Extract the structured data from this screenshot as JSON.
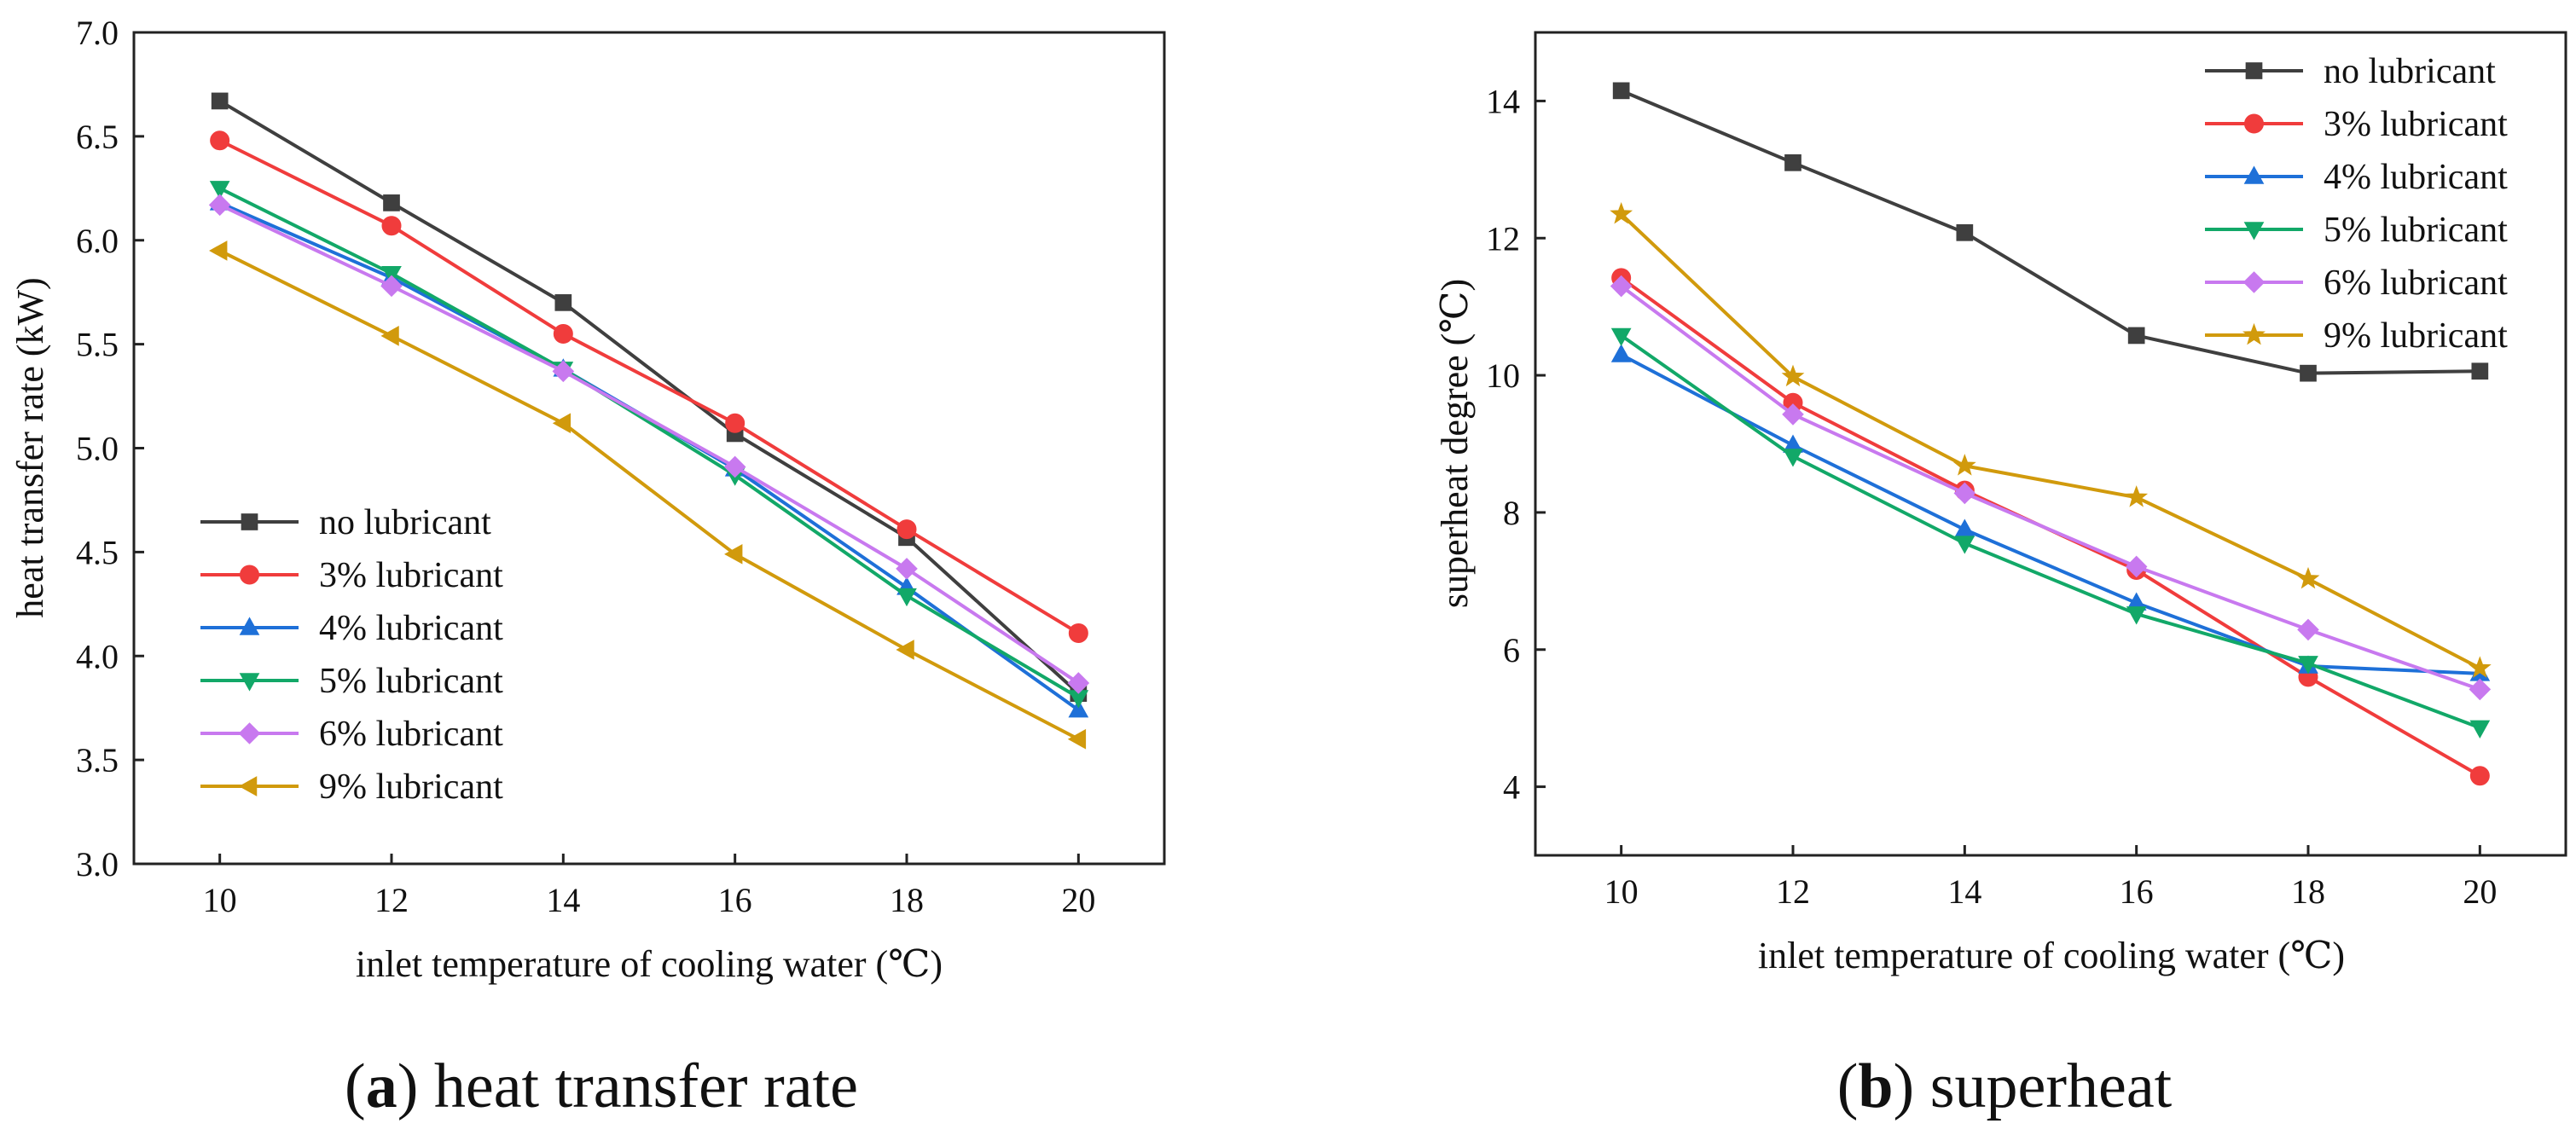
{
  "chart_data": [
    {
      "type": "line",
      "panel": "a",
      "caption_letter": "a",
      "caption_text": "heat transfer rate",
      "xlabel": "inlet temperature of cooling water (℃)",
      "ylabel": "heat transfer rate (kW)",
      "xlim": [
        9,
        21
      ],
      "ylim": [
        3.0,
        7.0
      ],
      "x": [
        10,
        12,
        14,
        16,
        18,
        20
      ],
      "xticks": [
        "10",
        "12",
        "14",
        "16",
        "18",
        "20"
      ],
      "yticks": [
        "3.0",
        "3.5",
        "4.0",
        "4.5",
        "5.0",
        "5.5",
        "6.0",
        "6.5",
        "7.0"
      ],
      "grid": false,
      "legend_position": "lower-left",
      "series": [
        {
          "name": "no lubricant",
          "color": "#3f3f3f",
          "marker": "square",
          "values": [
            6.67,
            6.18,
            5.7,
            5.07,
            4.57,
            3.82
          ]
        },
        {
          "name": "3% lubricant",
          "color": "#f03c3c",
          "marker": "circle",
          "values": [
            6.48,
            6.07,
            5.55,
            5.12,
            4.61,
            4.11
          ]
        },
        {
          "name": "4% lubricant",
          "color": "#1e70d8",
          "marker": "triangle-up",
          "values": [
            6.18,
            5.82,
            5.38,
            4.9,
            4.33,
            3.74
          ]
        },
        {
          "name": "5% lubricant",
          "color": "#12a868",
          "marker": "triangle-down",
          "values": [
            6.25,
            5.84,
            5.38,
            4.87,
            4.29,
            3.8
          ]
        },
        {
          "name": "6% lubricant",
          "color": "#c879ef",
          "marker": "diamond",
          "values": [
            6.17,
            5.78,
            5.37,
            4.91,
            4.42,
            3.87
          ]
        },
        {
          "name": "9% lubricant",
          "color": "#d19a0c",
          "marker": "triangle-left",
          "values": [
            5.95,
            5.54,
            5.12,
            4.49,
            4.03,
            3.6
          ]
        }
      ]
    },
    {
      "type": "line",
      "panel": "b",
      "caption_letter": "b",
      "caption_text": "superheat",
      "xlabel": "inlet temperature of cooling water (℃)",
      "ylabel": "superheat degree (℃)",
      "xlim": [
        9,
        21
      ],
      "ylim": [
        3,
        15
      ],
      "x": [
        10,
        12,
        14,
        16,
        18,
        20
      ],
      "xticks": [
        "10",
        "12",
        "14",
        "16",
        "18",
        "20"
      ],
      "yticks": [
        "4",
        "6",
        "8",
        "10",
        "12",
        "14"
      ],
      "grid": false,
      "legend_position": "top-right",
      "series": [
        {
          "name": "no lubricant",
          "color": "#3f3f3f",
          "marker": "square",
          "values": [
            14.15,
            13.1,
            12.08,
            10.58,
            10.03,
            10.06
          ]
        },
        {
          "name": "3% lubricant",
          "color": "#f03c3c",
          "marker": "circle",
          "values": [
            11.42,
            9.6,
            8.32,
            7.16,
            5.6,
            4.16
          ]
        },
        {
          "name": "4% lubricant",
          "color": "#1e70d8",
          "marker": "triangle-up",
          "values": [
            10.3,
            8.98,
            7.75,
            6.68,
            5.76,
            5.65
          ]
        },
        {
          "name": "5% lubricant",
          "color": "#12a868",
          "marker": "triangle-down",
          "values": [
            10.58,
            8.82,
            7.55,
            6.52,
            5.8,
            4.86
          ]
        },
        {
          "name": "6% lubricant",
          "color": "#c879ef",
          "marker": "diamond",
          "values": [
            11.3,
            9.43,
            8.28,
            7.21,
            6.29,
            5.42
          ]
        },
        {
          "name": "9% lubricant",
          "color": "#d19a0c",
          "marker": "star",
          "values": [
            12.35,
            9.98,
            8.68,
            8.22,
            7.03,
            5.73
          ]
        }
      ]
    }
  ]
}
